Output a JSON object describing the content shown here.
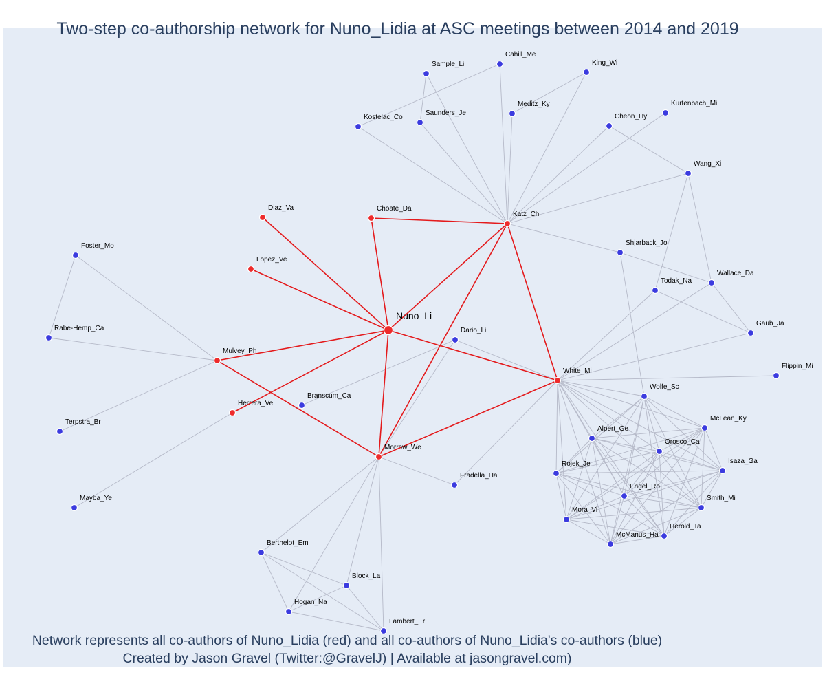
{
  "title": "Two-step co-authorship network for Nuno_Lidia at ASC meetings between 2014 and 2019",
  "caption_line1": "Network represents all co-authors of Nuno_Lidia (red) and all co-authors of Nuno_Lidia's co-authors (blue)",
  "caption_line2": "Created by Jason Gravel (Twitter:@GravelJ) | Available at jasongravel.com)",
  "colors": {
    "red": "#ee2b2b",
    "blue": "#3b3bdf",
    "red_edge": "#e41a1c",
    "gray_edge": "#b5b9c8",
    "background": "#e5ecf6"
  },
  "nodes": [
    {
      "id": "Nuno_Li",
      "group": "focal"
    },
    {
      "id": "Katz_Ch",
      "group": "red"
    },
    {
      "id": "White_Mi",
      "group": "red"
    },
    {
      "id": "Morrow_We",
      "group": "red"
    },
    {
      "id": "Mulvey_Ph",
      "group": "red"
    },
    {
      "id": "Herrera_Ve",
      "group": "red"
    },
    {
      "id": "Diaz_Va",
      "group": "red"
    },
    {
      "id": "Choate_Da",
      "group": "red"
    },
    {
      "id": "Lopez_Ve",
      "group": "red"
    },
    {
      "id": "Sample_Li",
      "group": "blue"
    },
    {
      "id": "Cahill_Me",
      "group": "blue"
    },
    {
      "id": "King_Wi",
      "group": "blue"
    },
    {
      "id": "Kostelac_Co",
      "group": "blue"
    },
    {
      "id": "Saunders_Je",
      "group": "blue"
    },
    {
      "id": "Meditz_Ky",
      "group": "blue"
    },
    {
      "id": "Cheon_Hy",
      "group": "blue"
    },
    {
      "id": "Kurtenbach_Mi",
      "group": "blue"
    },
    {
      "id": "Wang_Xi",
      "group": "blue"
    },
    {
      "id": "Shjarback_Jo",
      "group": "blue"
    },
    {
      "id": "Wallace_Da",
      "group": "blue"
    },
    {
      "id": "Todak_Na",
      "group": "blue"
    },
    {
      "id": "Gaub_Ja",
      "group": "blue"
    },
    {
      "id": "Flippin_Mi",
      "group": "blue"
    },
    {
      "id": "Foster_Mo",
      "group": "blue"
    },
    {
      "id": "Rabe-Hemp_Ca",
      "group": "blue"
    },
    {
      "id": "Terpstra_Br",
      "group": "blue"
    },
    {
      "id": "Mayba_Ye",
      "group": "blue"
    },
    {
      "id": "Dario_Li",
      "group": "blue"
    },
    {
      "id": "Branscum_Ca",
      "group": "blue"
    },
    {
      "id": "Fradella_Ha",
      "group": "blue"
    },
    {
      "id": "Berthelot_Em",
      "group": "blue"
    },
    {
      "id": "Block_La",
      "group": "blue"
    },
    {
      "id": "Hogan_Na",
      "group": "blue"
    },
    {
      "id": "Lambert_Er",
      "group": "blue"
    },
    {
      "id": "Wolfe_Sc",
      "group": "blue"
    },
    {
      "id": "McLean_Ky",
      "group": "blue"
    },
    {
      "id": "Alpert_Ge",
      "group": "blue"
    },
    {
      "id": "Orosco_Ca",
      "group": "blue"
    },
    {
      "id": "Isaza_Ga",
      "group": "blue"
    },
    {
      "id": "Rojek_Je",
      "group": "blue"
    },
    {
      "id": "Engel_Ro",
      "group": "blue"
    },
    {
      "id": "Smith_Mi",
      "group": "blue"
    },
    {
      "id": "Mora_Vi",
      "group": "blue"
    },
    {
      "id": "Herold_Ta",
      "group": "blue"
    },
    {
      "id": "McManus_Ha",
      "group": "blue"
    }
  ],
  "edges": [
    [
      "Nuno_Li",
      "Diaz_Va"
    ],
    [
      "Nuno_Li",
      "Choate_Da"
    ],
    [
      "Nuno_Li",
      "Lopez_Ve"
    ],
    [
      "Nuno_Li",
      "Katz_Ch"
    ],
    [
      "Nuno_Li",
      "White_Mi"
    ],
    [
      "Nuno_Li",
      "Morrow_We"
    ],
    [
      "Nuno_Li",
      "Mulvey_Ph"
    ],
    [
      "Nuno_Li",
      "Herrera_Ve"
    ],
    [
      "Choate_Da",
      "Katz_Ch"
    ],
    [
      "Katz_Ch",
      "White_Mi"
    ],
    [
      "Mulvey_Ph",
      "Morrow_We"
    ],
    [
      "Morrow_We",
      "White_Mi"
    ],
    [
      "Katz_Ch",
      "Sample_Li"
    ],
    [
      "Katz_Ch",
      "Cahill_Me"
    ],
    [
      "Katz_Ch",
      "King_Wi"
    ],
    [
      "Katz_Ch",
      "Kostelac_Co"
    ],
    [
      "Katz_Ch",
      "Saunders_Je"
    ],
    [
      "Katz_Ch",
      "Meditz_Ky"
    ],
    [
      "Katz_Ch",
      "Cheon_Hy"
    ],
    [
      "Katz_Ch",
      "Kurtenbach_Mi"
    ],
    [
      "Katz_Ch",
      "Wang_Xi"
    ],
    [
      "Katz_Ch",
      "Shjarback_Jo"
    ],
    [
      "Katz_Ch",
      "Morrow_We"
    ],
    [
      "Sample_Li",
      "Saunders_Je"
    ],
    [
      "Cahill_Me",
      "Kostelac_Co"
    ],
    [
      "King_Wi",
      "Meditz_Ky"
    ],
    [
      "Cheon_Hy",
      "Wang_Xi"
    ],
    [
      "Wang_Xi",
      "Todak_Na"
    ],
    [
      "Wang_Xi",
      "Wallace_Da"
    ],
    [
      "Shjarback_Jo",
      "Wallace_Da"
    ],
    [
      "Shjarback_Jo",
      "Wolfe_Sc"
    ],
    [
      "Wallace_Da",
      "Gaub_Ja"
    ],
    [
      "Wallace_Da",
      "White_Mi"
    ],
    [
      "Todak_Na",
      "Gaub_Ja"
    ],
    [
      "Todak_Na",
      "White_Mi"
    ],
    [
      "Gaub_Ja",
      "White_Mi"
    ],
    [
      "White_Mi",
      "Flippin_Mi"
    ],
    [
      "White_Mi",
      "Dario_Li"
    ],
    [
      "White_Mi",
      "Fradella_Ha"
    ],
    [
      "Dario_Li",
      "Branscum_Ca"
    ],
    [
      "Dario_Li",
      "Morrow_We"
    ],
    [
      "Foster_Mo",
      "Rabe-Hemp_Ca"
    ],
    [
      "Foster_Mo",
      "Mulvey_Ph"
    ],
    [
      "Rabe-Hemp_Ca",
      "Mulvey_Ph"
    ],
    [
      "Mulvey_Ph",
      "Terpstra_Br"
    ],
    [
      "Herrera_Ve",
      "Mayba_Ye"
    ],
    [
      "Morrow_We",
      "Fradella_Ha"
    ],
    [
      "Morrow_We",
      "Berthelot_Em"
    ],
    [
      "Morrow_We",
      "Block_La"
    ],
    [
      "Morrow_We",
      "Hogan_Na"
    ],
    [
      "Morrow_We",
      "Lambert_Er"
    ],
    [
      "Berthelot_Em",
      "Block_La"
    ],
    [
      "Berthelot_Em",
      "Hogan_Na"
    ],
    [
      "Berthelot_Em",
      "Lambert_Er"
    ],
    [
      "Block_La",
      "Hogan_Na"
    ],
    [
      "Block_La",
      "Lambert_Er"
    ],
    [
      "Hogan_Na",
      "Lambert_Er"
    ]
  ],
  "clique": [
    "White_Mi",
    "Wolfe_Sc",
    "McLean_Ky",
    "Alpert_Ge",
    "Orosco_Ca",
    "Isaza_Ga",
    "Rojek_Je",
    "Engel_Ro",
    "Smith_Mi",
    "Mora_Vi",
    "Herold_Ta",
    "McManus_Ha"
  ]
}
